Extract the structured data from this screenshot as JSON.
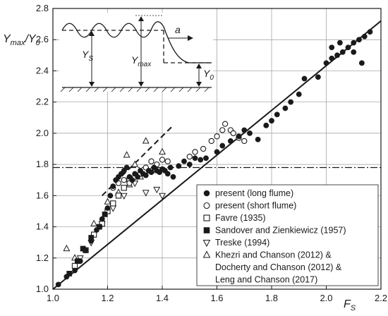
{
  "chart_data": {
    "type": "scatter",
    "xlabel": {
      "main": "F",
      "sub": "S"
    },
    "ylabel": {
      "main": "Y",
      "sub": "max",
      "slash": "/Y",
      "sub2": "0"
    },
    "xlim": [
      1.0,
      2.2
    ],
    "ylim": [
      1.0,
      2.8
    ],
    "xticks": [
      "1.0",
      "1.2",
      "1.4",
      "1.6",
      "1.8",
      "2.0",
      "2.2"
    ],
    "yticks": [
      "1.0",
      "1.2",
      "1.4",
      "1.6",
      "1.8",
      "2.0",
      "2.2",
      "2.4",
      "2.6",
      "2.8"
    ],
    "grid": true,
    "legend_position": "bottom-right",
    "reference_lines": {
      "solid": [
        [
          1.0,
          1.0
        ],
        [
          2.2,
          2.72
        ]
      ],
      "dashed": [
        [
          1.18,
          1.6
        ],
        [
          1.44,
          2.05
        ]
      ],
      "dashdot_y": 1.78
    },
    "inset": {
      "label_a": "a",
      "label_ys": {
        "main": "Y",
        "sub": "S"
      },
      "label_ymax": {
        "main": "Y",
        "sub": "max"
      },
      "label_y0": {
        "main": "Y",
        "sub": "0"
      }
    },
    "series": [
      {
        "name": "present (long flume)",
        "marker": "filled-circle",
        "points": [
          [
            1.02,
            1.03
          ],
          [
            1.05,
            1.08
          ],
          [
            1.08,
            1.12
          ],
          [
            1.1,
            1.18
          ],
          [
            1.12,
            1.25
          ],
          [
            1.14,
            1.31
          ],
          [
            1.16,
            1.38
          ],
          [
            1.18,
            1.45
          ],
          [
            1.2,
            1.52
          ],
          [
            1.21,
            1.6
          ],
          [
            1.22,
            1.66
          ],
          [
            1.23,
            1.7
          ],
          [
            1.24,
            1.72
          ],
          [
            1.25,
            1.74
          ],
          [
            1.26,
            1.76
          ],
          [
            1.27,
            1.78
          ],
          [
            1.28,
            1.72
          ],
          [
            1.29,
            1.7
          ],
          [
            1.3,
            1.74
          ],
          [
            1.31,
            1.72
          ],
          [
            1.32,
            1.76
          ],
          [
            1.33,
            1.74
          ],
          [
            1.34,
            1.73
          ],
          [
            1.35,
            1.76
          ],
          [
            1.36,
            1.75
          ],
          [
            1.37,
            1.78
          ],
          [
            1.38,
            1.76
          ],
          [
            1.39,
            1.75
          ],
          [
            1.4,
            1.77
          ],
          [
            1.41,
            1.76
          ],
          [
            1.42,
            1.74
          ],
          [
            1.43,
            1.78
          ],
          [
            1.44,
            1.72
          ],
          [
            1.46,
            1.79
          ],
          [
            1.48,
            1.82
          ],
          [
            1.5,
            1.8
          ],
          [
            1.52,
            1.84
          ],
          [
            1.54,
            1.83
          ],
          [
            1.56,
            1.84
          ],
          [
            1.6,
            1.88
          ],
          [
            1.62,
            1.92
          ],
          [
            1.65,
            1.95
          ],
          [
            1.68,
            1.98
          ],
          [
            1.7,
            2.02
          ],
          [
            1.72,
            2.0
          ],
          [
            1.75,
            1.96
          ],
          [
            1.78,
            2.05
          ],
          [
            1.8,
            2.08
          ],
          [
            1.82,
            2.12
          ],
          [
            1.85,
            2.16
          ],
          [
            1.87,
            2.2
          ],
          [
            1.9,
            2.25
          ],
          [
            1.92,
            2.35
          ],
          [
            1.97,
            2.36
          ],
          [
            2.0,
            2.45
          ],
          [
            2.02,
            2.48
          ],
          [
            2.04,
            2.5
          ],
          [
            2.06,
            2.52
          ],
          [
            2.08,
            2.55
          ],
          [
            2.1,
            2.58
          ],
          [
            2.12,
            2.6
          ],
          [
            2.14,
            2.62
          ],
          [
            2.16,
            2.65
          ],
          [
            2.02,
            2.55
          ],
          [
            2.13,
            2.45
          ],
          [
            2.05,
            2.58
          ],
          [
            2.1,
            2.52
          ]
        ]
      },
      {
        "name": "present (short flume)",
        "marker": "open-circle",
        "points": [
          [
            1.22,
            1.65
          ],
          [
            1.24,
            1.68
          ],
          [
            1.26,
            1.7
          ],
          [
            1.28,
            1.68
          ],
          [
            1.3,
            1.72
          ],
          [
            1.32,
            1.74
          ],
          [
            1.34,
            1.78
          ],
          [
            1.36,
            1.82
          ],
          [
            1.38,
            1.8
          ],
          [
            1.4,
            1.83
          ],
          [
            1.42,
            1.82
          ],
          [
            1.5,
            1.85
          ],
          [
            1.52,
            1.88
          ],
          [
            1.55,
            1.9
          ],
          [
            1.58,
            1.95
          ],
          [
            1.6,
            1.98
          ],
          [
            1.62,
            2.02
          ],
          [
            1.63,
            2.06
          ],
          [
            1.65,
            2.02
          ],
          [
            1.66,
            2.0
          ],
          [
            1.68,
            1.97
          ],
          [
            1.7,
            1.95
          ]
        ]
      },
      {
        "name": "Favre (1935)",
        "marker": "open-square",
        "points": [
          [
            1.08,
            1.15
          ],
          [
            1.12,
            1.25
          ],
          [
            1.15,
            1.35
          ],
          [
            1.18,
            1.42
          ],
          [
            1.2,
            1.5
          ],
          [
            1.22,
            1.55
          ],
          [
            1.24,
            1.6
          ],
          [
            1.26,
            1.65
          ],
          [
            1.28,
            1.7
          ]
        ]
      },
      {
        "name": "Sandover and Zienkiewicz (1957)",
        "marker": "filled-square",
        "points": [
          [
            1.06,
            1.1
          ],
          [
            1.09,
            1.18
          ],
          [
            1.11,
            1.26
          ],
          [
            1.14,
            1.33
          ],
          [
            1.17,
            1.4
          ],
          [
            1.19,
            1.48
          ]
        ]
      },
      {
        "name": "Treske (1994)",
        "marker": "open-triangle-down",
        "points": [
          [
            1.1,
            1.2
          ],
          [
            1.14,
            1.3
          ],
          [
            1.18,
            1.42
          ],
          [
            1.22,
            1.52
          ],
          [
            1.26,
            1.6
          ],
          [
            1.3,
            1.68
          ],
          [
            1.34,
            1.62
          ],
          [
            1.38,
            1.64
          ],
          [
            1.4,
            1.6
          ]
        ]
      },
      {
        "name": "Khezri and Chanson (2012) & Docherty and Chanson (2012) & Leng and Chanson (2017)",
        "marker": "open-triangle-up",
        "points": [
          [
            1.05,
            1.26
          ],
          [
            1.08,
            1.2
          ],
          [
            1.15,
            1.42
          ],
          [
            1.2,
            1.56
          ],
          [
            1.24,
            1.62
          ],
          [
            1.28,
            1.67
          ],
          [
            1.32,
            1.72
          ],
          [
            1.36,
            1.76
          ],
          [
            1.4,
            1.88
          ],
          [
            1.34,
            1.95
          ],
          [
            1.27,
            1.86
          ],
          [
            1.3,
            1.8
          ]
        ]
      }
    ],
    "legend_lines": [
      "present (long flume)",
      "present (short flume)",
      "Favre (1935)",
      "Sandover and Zienkiewicz (1957)",
      "Treske (1994)",
      "Khezri and Chanson (2012) &",
      "Docherty and Chanson (2012) &",
      "Leng and Chanson (2017)"
    ]
  }
}
